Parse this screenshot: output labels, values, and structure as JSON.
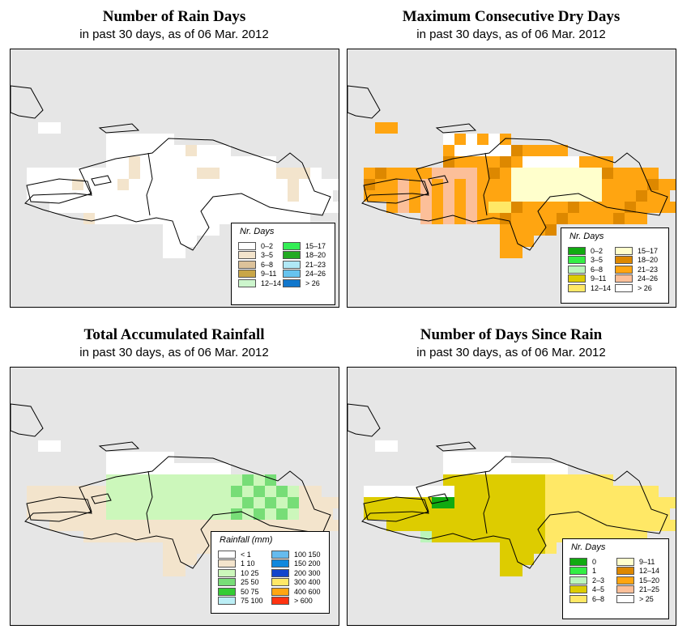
{
  "panels": [
    {
      "title": "Number of Rain Days",
      "subtitle": "in past 30 days, as of  06 Mar. 2012",
      "legend": {
        "title": "Nr. Days",
        "items": [
          {
            "label": "0–2",
            "color": "#ffffff"
          },
          {
            "label": "3–5",
            "color": "#f3e4cc"
          },
          {
            "label": "6–8",
            "color": "#dcc29a"
          },
          {
            "label": "9–11",
            "color": "#c9a647"
          },
          {
            "label": "12–14",
            "color": "#ccf5cc"
          },
          {
            "label": "15–17",
            "color": "#33ee55"
          },
          {
            "label": "18–20",
            "color": "#22aa22"
          },
          {
            "label": "21–23",
            "color": "#b0e8f5"
          },
          {
            "label": "24–26",
            "color": "#66c3ee"
          },
          {
            "label": "> 26",
            "color": "#1177cc"
          }
        ]
      }
    },
    {
      "title": "Maximum Consecutive Dry Days",
      "subtitle": "in past 30 days, as of  06 Mar. 2012",
      "legend": {
        "title": "Nr. Days",
        "items": [
          {
            "label": "0–2",
            "color": "#11aa11"
          },
          {
            "label": "3–5",
            "color": "#33ee44"
          },
          {
            "label": "6–8",
            "color": "#bbf5bb"
          },
          {
            "label": "9–11",
            "color": "#ddcc00"
          },
          {
            "label": "12–14",
            "color": "#ffe866"
          },
          {
            "label": "15–17",
            "color": "#ffffcc"
          },
          {
            "label": "18–20",
            "color": "#dd8800"
          },
          {
            "label": "21–23",
            "color": "#ffa511"
          },
          {
            "label": "24–26",
            "color": "#fcbf99"
          },
          {
            "label": "> 26",
            "color": "#ffffff"
          }
        ]
      }
    },
    {
      "title": "Total Accumulated Rainfall",
      "subtitle": "in past 30 days, as of  06 Mar. 2012",
      "legend": {
        "title": "Rainfall (mm)",
        "items": [
          {
            "label": "< 1",
            "color": "#ffffff"
          },
          {
            "label": "1    10",
            "color": "#f3e4cc"
          },
          {
            "label": "10    25",
            "color": "#ccf7bb"
          },
          {
            "label": "25    50",
            "color": "#77dd77"
          },
          {
            "label": "50    75",
            "color": "#33cc33"
          },
          {
            "label": "75   100",
            "color": "#bbeef5"
          },
          {
            "label": "100   150",
            "color": "#66bbee"
          },
          {
            "label": "150   200",
            "color": "#1188dd"
          },
          {
            "label": "200   300",
            "color": "#1144cc"
          },
          {
            "label": "300   400",
            "color": "#ffe866"
          },
          {
            "label": "400   600",
            "color": "#ffa511"
          },
          {
            "label": "> 600",
            "color": "#ff3311"
          }
        ]
      }
    },
    {
      "title": "Number of Days Since Rain",
      "subtitle": "in past 30 days, as of  06 Mar. 2012",
      "legend": {
        "title": "Nr. Days",
        "items": [
          {
            "label": "0",
            "color": "#11aa11"
          },
          {
            "label": "1",
            "color": "#33ee44"
          },
          {
            "label": "2–3",
            "color": "#bbf5bb"
          },
          {
            "label": "4–5",
            "color": "#ddcc00"
          },
          {
            "label": "6–8",
            "color": "#ffe866"
          },
          {
            "label": "9–11",
            "color": "#ffffcc"
          },
          {
            "label": "12–14",
            "color": "#dd8800"
          },
          {
            "label": "15–20",
            "color": "#ffa511"
          },
          {
            "label": "21–25",
            "color": "#fcbf99"
          },
          {
            "label": "> 25",
            "color": "#ffffff"
          }
        ]
      }
    }
  ]
}
